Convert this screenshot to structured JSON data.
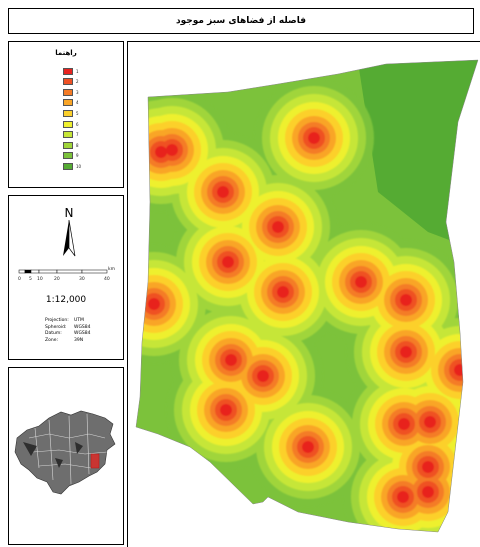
{
  "title": "فاصله از فضاهای سبز موجود",
  "legend": {
    "title": "راهنما",
    "items": [
      {
        "label": "1",
        "color": "#e8231f"
      },
      {
        "label": "2",
        "color": "#ef5124"
      },
      {
        "label": "3",
        "color": "#f47b26"
      },
      {
        "label": "4",
        "color": "#f9a528"
      },
      {
        "label": "5",
        "color": "#fcd02b"
      },
      {
        "label": "6",
        "color": "#eef02f"
      },
      {
        "label": "7",
        "color": "#c6e637"
      },
      {
        "label": "8",
        "color": "#a0d53a"
      },
      {
        "label": "9",
        "color": "#7cc23b"
      },
      {
        "label": "10",
        "color": "#55ab33"
      }
    ]
  },
  "north_arrow": {
    "label": "N"
  },
  "scale_bar": {
    "ticks": [
      "0",
      "5",
      "10",
      "20",
      "30",
      "40"
    ],
    "unit": "km",
    "ratio": "1:12,000"
  },
  "metadata": [
    {
      "key": "Projection:",
      "value": "UTM"
    },
    {
      "key": "Spheroid:",
      "value": "WGS84"
    },
    {
      "key": "Datum:",
      "value": "WGS84"
    },
    {
      "key": "Zone:",
      "value": "39N"
    }
  ],
  "inset_map": {
    "highlight_color": "#e8231f"
  }
}
